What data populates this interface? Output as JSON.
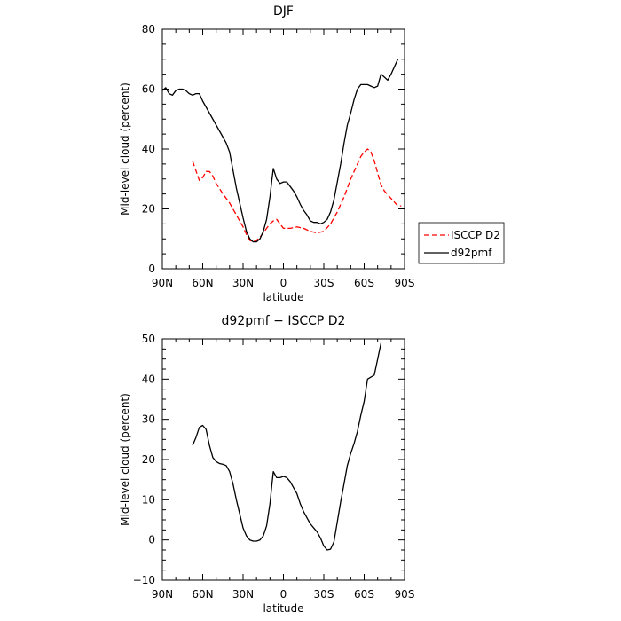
{
  "chart_data": [
    {
      "type": "line",
      "title": "DJF",
      "xlabel": "latitude",
      "ylabel": "Mid-level cloud (percent)",
      "xlim": [
        -90,
        90
      ],
      "ylim": [
        0,
        80
      ],
      "x_ticks": [
        -90,
        -60,
        -30,
        0,
        30,
        60,
        90
      ],
      "x_tick_labels": [
        "90N",
        "60N",
        "30N",
        "0",
        "30S",
        "60S",
        "90S"
      ],
      "y_ticks": [
        0,
        20,
        40,
        60,
        80
      ],
      "y_tick_labels": [
        "0",
        "20",
        "40",
        "60",
        "80"
      ],
      "legend_position": "right",
      "series": [
        {
          "name": "ISCCP D2",
          "color": "#ff0000",
          "dash": "dashed",
          "points": [
            [
              -67.5,
              36
            ],
            [
              -62.5,
              29.5
            ],
            [
              -60,
              30.5
            ],
            [
              -57.5,
              32.5
            ],
            [
              -55,
              32.5
            ],
            [
              -52.5,
              31
            ],
            [
              -50,
              28.5
            ],
            [
              -45,
              25
            ],
            [
              -40,
              22
            ],
            [
              -35,
              18
            ],
            [
              -30,
              14
            ],
            [
              -27.5,
              11.5
            ],
            [
              -25,
              9.5
            ],
            [
              -22.5,
              9
            ],
            [
              -20,
              9.5
            ],
            [
              -17.5,
              10.5
            ],
            [
              -15,
              12
            ],
            [
              -12.5,
              13.5
            ],
            [
              -10,
              15
            ],
            [
              -7.5,
              16
            ],
            [
              -5,
              16.5
            ],
            [
              -2.5,
              15
            ],
            [
              0,
              13.5
            ],
            [
              2.5,
              13.5
            ],
            [
              5,
              13.5
            ],
            [
              10,
              14
            ],
            [
              15,
              13.5
            ],
            [
              20,
              12.5
            ],
            [
              25,
              12
            ],
            [
              30,
              12.5
            ],
            [
              35,
              15
            ],
            [
              40,
              19
            ],
            [
              45,
              24
            ],
            [
              50,
              30
            ],
            [
              55,
              35
            ],
            [
              57.5,
              37.5
            ],
            [
              60,
              39
            ],
            [
              62.5,
              40
            ],
            [
              65,
              39
            ],
            [
              67.5,
              36
            ],
            [
              70,
              32
            ],
            [
              72.5,
              28
            ],
            [
              75,
              26
            ],
            [
              80,
              23.5
            ],
            [
              85,
              21
            ],
            [
              87.5,
              21
            ]
          ]
        },
        {
          "name": "d92pmf",
          "color": "#000000",
          "dash": "solid",
          "points": [
            [
              -90,
              59.5
            ],
            [
              -87.5,
              60.5
            ],
            [
              -85,
              58.5
            ],
            [
              -82.5,
              58
            ],
            [
              -80,
              59.5
            ],
            [
              -77.5,
              60
            ],
            [
              -75,
              60
            ],
            [
              -72.5,
              59.5
            ],
            [
              -70,
              58.5
            ],
            [
              -67.5,
              58
            ],
            [
              -65,
              58.5
            ],
            [
              -62.5,
              58.5
            ],
            [
              -60,
              56
            ],
            [
              -55,
              52
            ],
            [
              -50,
              48
            ],
            [
              -45,
              44
            ],
            [
              -42.5,
              42
            ],
            [
              -40,
              39
            ],
            [
              -37.5,
              33
            ],
            [
              -35,
              27
            ],
            [
              -32.5,
              22
            ],
            [
              -30,
              17
            ],
            [
              -27.5,
              12.5
            ],
            [
              -25,
              10
            ],
            [
              -22.5,
              9
            ],
            [
              -20,
              9
            ],
            [
              -17.5,
              10
            ],
            [
              -15,
              12.5
            ],
            [
              -12.5,
              16.5
            ],
            [
              -10,
              24
            ],
            [
              -8.5,
              30
            ],
            [
              -7.5,
              33.5
            ],
            [
              -5,
              30
            ],
            [
              -2.5,
              28.5
            ],
            [
              0,
              29
            ],
            [
              2.5,
              29
            ],
            [
              5,
              27.5
            ],
            [
              7.5,
              26
            ],
            [
              10,
              24
            ],
            [
              12.5,
              21.5
            ],
            [
              15,
              19.5
            ],
            [
              17.5,
              18
            ],
            [
              20,
              16
            ],
            [
              22.5,
              15.5
            ],
            [
              25,
              15.5
            ],
            [
              27.5,
              15
            ],
            [
              30,
              15.5
            ],
            [
              32.5,
              16.5
            ],
            [
              35,
              19
            ],
            [
              37.5,
              23
            ],
            [
              40,
              29
            ],
            [
              42.5,
              35
            ],
            [
              45,
              42
            ],
            [
              47.5,
              48
            ],
            [
              50,
              52
            ],
            [
              52.5,
              56.5
            ],
            [
              55,
              60
            ],
            [
              57.5,
              61.5
            ],
            [
              60,
              61.5
            ],
            [
              62.5,
              61.5
            ],
            [
              65,
              61
            ],
            [
              67.5,
              60.5
            ],
            [
              70,
              61
            ],
            [
              72.5,
              65
            ],
            [
              75,
              64
            ],
            [
              77.5,
              63
            ],
            [
              80,
              65
            ],
            [
              82.5,
              67.5
            ],
            [
              85,
              70
            ]
          ]
        }
      ]
    },
    {
      "type": "line",
      "title": "d92pmf − ISCCP D2",
      "xlabel": "latitude",
      "ylabel": "Mid-level cloud (percent)",
      "xlim": [
        -90,
        90
      ],
      "ylim": [
        -10,
        50
      ],
      "x_ticks": [
        -90,
        -60,
        -30,
        0,
        30,
        60,
        90
      ],
      "x_tick_labels": [
        "90N",
        "60N",
        "30N",
        "0",
        "30S",
        "60S",
        "90S"
      ],
      "y_ticks": [
        -10,
        0,
        10,
        20,
        30,
        40,
        50
      ],
      "y_tick_labels": [
        "−10",
        "0",
        "10",
        "20",
        "30",
        "40",
        "50"
      ],
      "series": [
        {
          "color": "#000000",
          "dash": "solid",
          "points": [
            [
              -67.5,
              23.5
            ],
            [
              -65,
              25.5
            ],
            [
              -62.5,
              28
            ],
            [
              -60,
              28.5
            ],
            [
              -57.5,
              27.5
            ],
            [
              -55,
              23.5
            ],
            [
              -52.5,
              20.5
            ],
            [
              -50,
              19.5
            ],
            [
              -47.5,
              19
            ],
            [
              -45,
              18.8
            ],
            [
              -42.5,
              18.5
            ],
            [
              -40,
              17
            ],
            [
              -37.5,
              14
            ],
            [
              -35,
              10
            ],
            [
              -32.5,
              6.5
            ],
            [
              -30,
              3
            ],
            [
              -27.5,
              1
            ],
            [
              -25,
              0
            ],
            [
              -22.5,
              -0.3
            ],
            [
              -20,
              -0.3
            ],
            [
              -17.5,
              0
            ],
            [
              -15,
              1
            ],
            [
              -12.5,
              3.5
            ],
            [
              -10,
              9
            ],
            [
              -8.5,
              14
            ],
            [
              -7.5,
              17
            ],
            [
              -5,
              15.5
            ],
            [
              -2.5,
              15.5
            ],
            [
              0,
              15.8
            ],
            [
              2.5,
              15.5
            ],
            [
              5,
              14.5
            ],
            [
              7.5,
              13
            ],
            [
              10,
              11.5
            ],
            [
              12.5,
              9
            ],
            [
              15,
              7
            ],
            [
              17.5,
              5.5
            ],
            [
              20,
              4
            ],
            [
              22.5,
              3
            ],
            [
              25,
              2
            ],
            [
              27.5,
              0.5
            ],
            [
              30,
              -1.5
            ],
            [
              32.5,
              -2.5
            ],
            [
              35,
              -2.3
            ],
            [
              37.5,
              -0.5
            ],
            [
              40,
              4.5
            ],
            [
              42.5,
              9.5
            ],
            [
              45,
              14
            ],
            [
              47.5,
              18.5
            ],
            [
              50,
              21.5
            ],
            [
              52.5,
              24
            ],
            [
              55,
              27
            ],
            [
              57.5,
              31
            ],
            [
              60,
              34.5
            ],
            [
              62.5,
              40
            ],
            [
              65,
              40.5
            ],
            [
              67.5,
              41
            ],
            [
              70,
              45
            ],
            [
              72.5,
              49
            ]
          ]
        }
      ]
    }
  ]
}
